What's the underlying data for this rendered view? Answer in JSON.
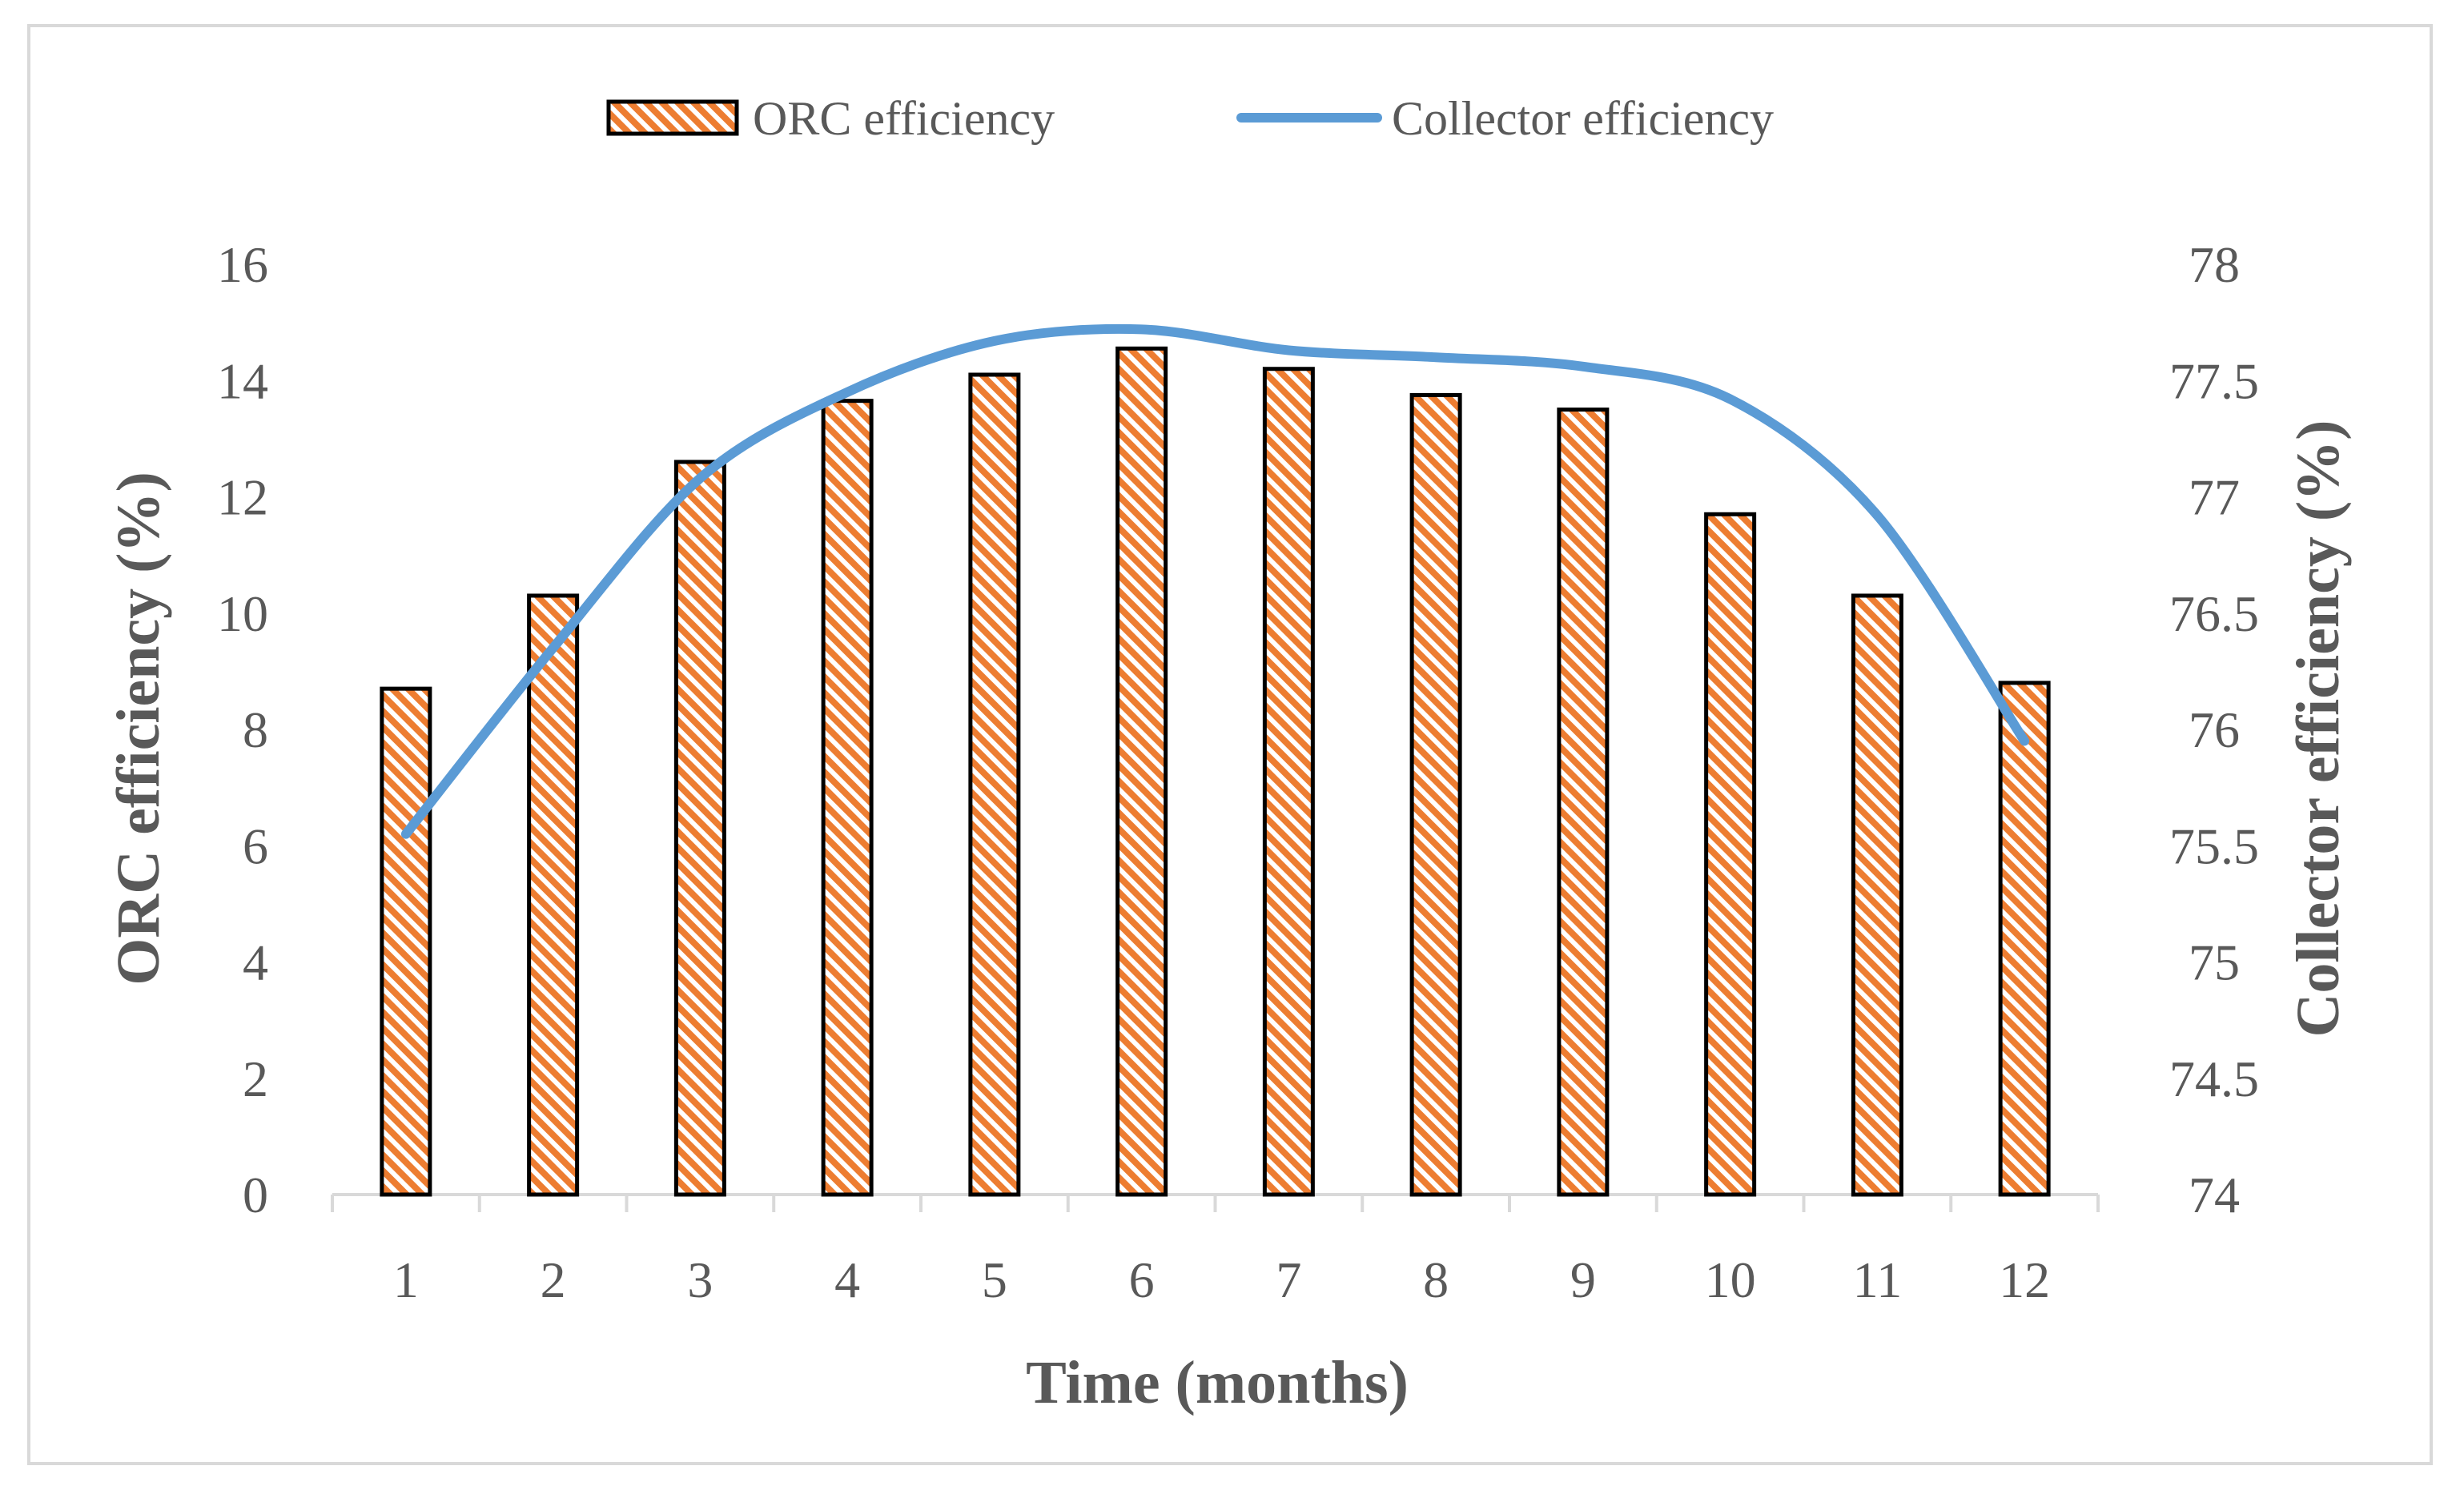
{
  "chart_data": {
    "type": "bar+line",
    "title": "",
    "categories": [
      "1",
      "2",
      "3",
      "4",
      "5",
      "6",
      "7",
      "8",
      "9",
      "10",
      "11",
      "12"
    ],
    "series": [
      {
        "name": "ORC efficiency",
        "type": "bar",
        "axis": "left",
        "values": [
          8.7,
          10.3,
          12.6,
          13.65,
          14.1,
          14.55,
          14.2,
          13.75,
          13.5,
          11.7,
          10.3,
          8.8
        ]
      },
      {
        "name": "Collector efficiency",
        "type": "line",
        "axis": "right",
        "values": [
          75.55,
          76.35,
          77.08,
          77.45,
          77.67,
          77.72,
          77.63,
          77.6,
          77.56,
          77.42,
          76.92,
          75.95
        ]
      }
    ],
    "xlabel": "Time (months)",
    "ylabel_left": "ORC efficiency (%)",
    "ylabel_right": "Collector efficiency (%)",
    "ylim_left": [
      0,
      16
    ],
    "yticks_left": [
      "0",
      "2",
      "4",
      "6",
      "8",
      "10",
      "12",
      "14",
      "16"
    ],
    "ylim_right": [
      74,
      78
    ],
    "yticks_right": [
      "74",
      "74.5",
      "75",
      "75.5",
      "76",
      "76.5",
      "77",
      "77.5",
      "78"
    ],
    "grid": false,
    "legend_position": "top-center",
    "colors": {
      "bar_fill": "#ed7d31",
      "bar_stripe": "#ffffff",
      "bar_edge": "#000000",
      "line": "#5b9bd5",
      "axis": "#d9d9d9",
      "text": "#595959"
    }
  }
}
